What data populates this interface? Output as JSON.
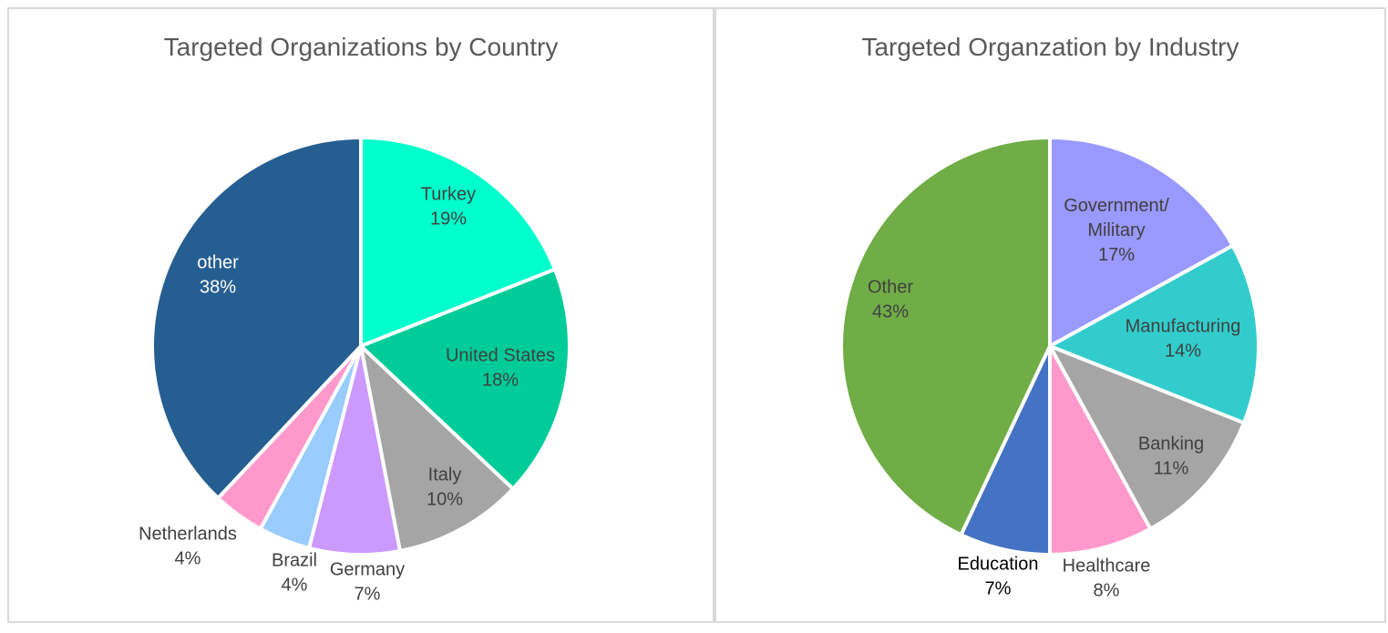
{
  "chart_data": [
    {
      "type": "pie",
      "title": "Targeted Organizations by Country",
      "slices": [
        {
          "label": "Turkey",
          "pct_label": "19%",
          "value": 19,
          "color": "#00FFCC"
        },
        {
          "label": "United States",
          "pct_label": "18%",
          "value": 18,
          "color": "#00CC99"
        },
        {
          "label": "Italy",
          "pct_label": "10%",
          "value": 10,
          "color": "#A5A5A5"
        },
        {
          "label": "Germany",
          "pct_label": "7%",
          "value": 7,
          "color": "#CC99FF"
        },
        {
          "label": "Brazil",
          "pct_label": "4%",
          "value": 4,
          "color": "#99CCFF"
        },
        {
          "label": "Netherlands",
          "pct_label": "4%",
          "value": 4,
          "color": "#FF99CC"
        },
        {
          "label": "other",
          "pct_label": "38%",
          "value": 38,
          "color": "#255E91"
        }
      ]
    },
    {
      "type": "pie",
      "title": "Targeted Organzation by Industry",
      "slices": [
        {
          "label": "Government/\nMilitary",
          "pct_label": "17%",
          "value": 17,
          "color": "#9999FF"
        },
        {
          "label": "Manufacturing",
          "pct_label": "14%",
          "value": 14,
          "color": "#33CCCC"
        },
        {
          "label": "Banking",
          "pct_label": "11%",
          "value": 11,
          "color": "#A5A5A5"
        },
        {
          "label": "Healthcare",
          "pct_label": "8%",
          "value": 8,
          "color": "#FF99CC"
        },
        {
          "label": "Education",
          "pct_label": "7%",
          "value": 7,
          "color": "#4472C4"
        },
        {
          "label": "Other",
          "pct_label": "43%",
          "value": 43,
          "color": "#70AD47"
        }
      ]
    }
  ]
}
